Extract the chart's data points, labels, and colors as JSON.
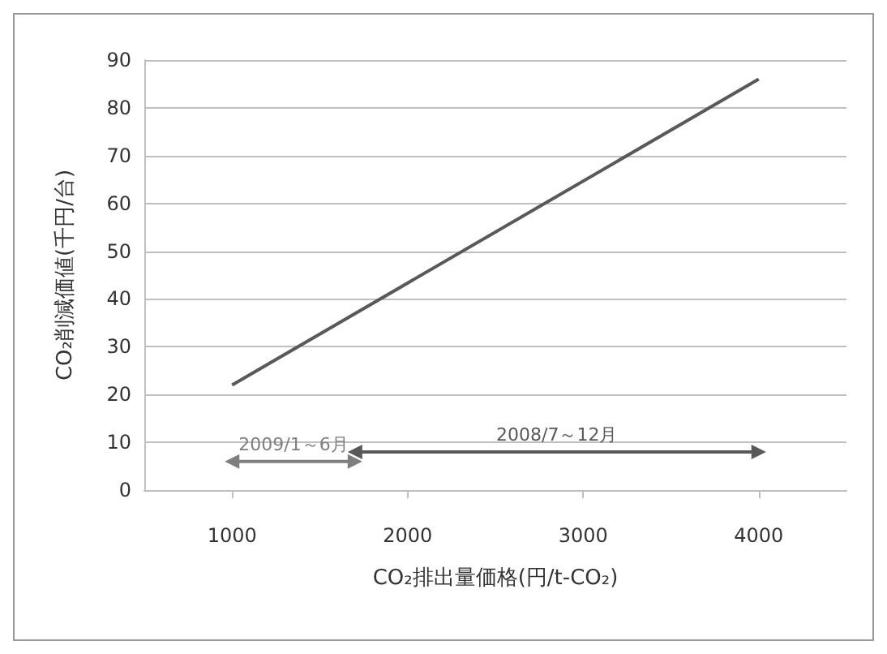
{
  "chart_data": {
    "type": "line",
    "xlabel": "CO₂排出量価格(円/t-CO₂)",
    "ylabel": "CO₂削減価値(千円/台)",
    "x": [
      1000,
      4000
    ],
    "series": [
      {
        "color": "#595959",
        "values": [
          22,
          86
        ]
      },
      {
        "name": "2009/1～6月",
        "color": "#7f7f7f",
        "marker": "triangle",
        "x": [
          1000,
          1700
        ],
        "values": [
          6,
          6
        ]
      },
      {
        "name": "2008/7～12月",
        "color": "#595959",
        "marker": "triangle",
        "x": [
          1700,
          4000
        ],
        "values": [
          8,
          8
        ]
      }
    ],
    "xlim": [
      500,
      4500
    ],
    "xticks": [
      1000,
      2000,
      3000,
      4000
    ],
    "ylim": [
      0,
      90
    ],
    "yticks": [
      0,
      10,
      20,
      30,
      40,
      50,
      60,
      70,
      80,
      90
    ],
    "grid": "y",
    "marker": "none",
    "line_style": "solid"
  }
}
